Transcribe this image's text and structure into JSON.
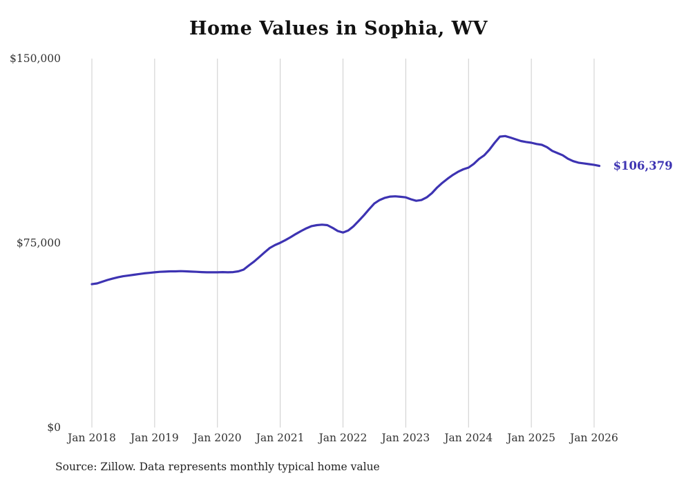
{
  "chart_data": {
    "type": "line",
    "title": "Home Values in Sophia, WV",
    "source": "Source: Zillow. Data represents monthly typical home value",
    "end_label": "$106,379",
    "end_value": 106379,
    "line_color": "#3d33b2",
    "grid_color": "#cccccc",
    "tick_label_color": "#333333",
    "grid": "vertical-only",
    "legend": "none",
    "ylim": [
      0,
      150000
    ],
    "x_start": "2018-01",
    "x_end": "2026-02",
    "x_tick_labels": [
      "Jan 2018",
      "Jan 2019",
      "Jan 2020",
      "Jan 2021",
      "Jan 2022",
      "Jan 2023",
      "Jan 2024",
      "Jan 2025",
      "Jan 2026"
    ],
    "y_ticks": [
      {
        "label": "$0",
        "value": 0
      },
      {
        "label": "$75,000",
        "value": 75000
      },
      {
        "label": "$150,000",
        "value": 150000
      }
    ],
    "series": [
      {
        "name": "Typical home value (monthly)",
        "values": [
          58300,
          58600,
          59300,
          60000,
          60600,
          61100,
          61500,
          61800,
          62100,
          62400,
          62700,
          62900,
          63100,
          63300,
          63400,
          63500,
          63500,
          63600,
          63500,
          63400,
          63300,
          63200,
          63100,
          63100,
          63100,
          63200,
          63100,
          63200,
          63500,
          64200,
          65900,
          67500,
          69300,
          71200,
          73000,
          74200,
          75100,
          76200,
          77400,
          78700,
          79900,
          81000,
          81900,
          82300,
          82500,
          82300,
          81200,
          79900,
          79300,
          80100,
          81800,
          84000,
          86300,
          88800,
          91100,
          92500,
          93400,
          93900,
          94000,
          93800,
          93600,
          92800,
          92200,
          92500,
          93600,
          95300,
          97600,
          99500,
          101200,
          102700,
          104000,
          105000,
          105700,
          107200,
          109200,
          110700,
          113000,
          115800,
          118300,
          118500,
          117900,
          117200,
          116500,
          116100,
          115800,
          115300,
          114950,
          114000,
          112500,
          111600,
          110700,
          109300,
          108300,
          107700,
          107400,
          107100,
          106800,
          106379
        ]
      }
    ]
  }
}
